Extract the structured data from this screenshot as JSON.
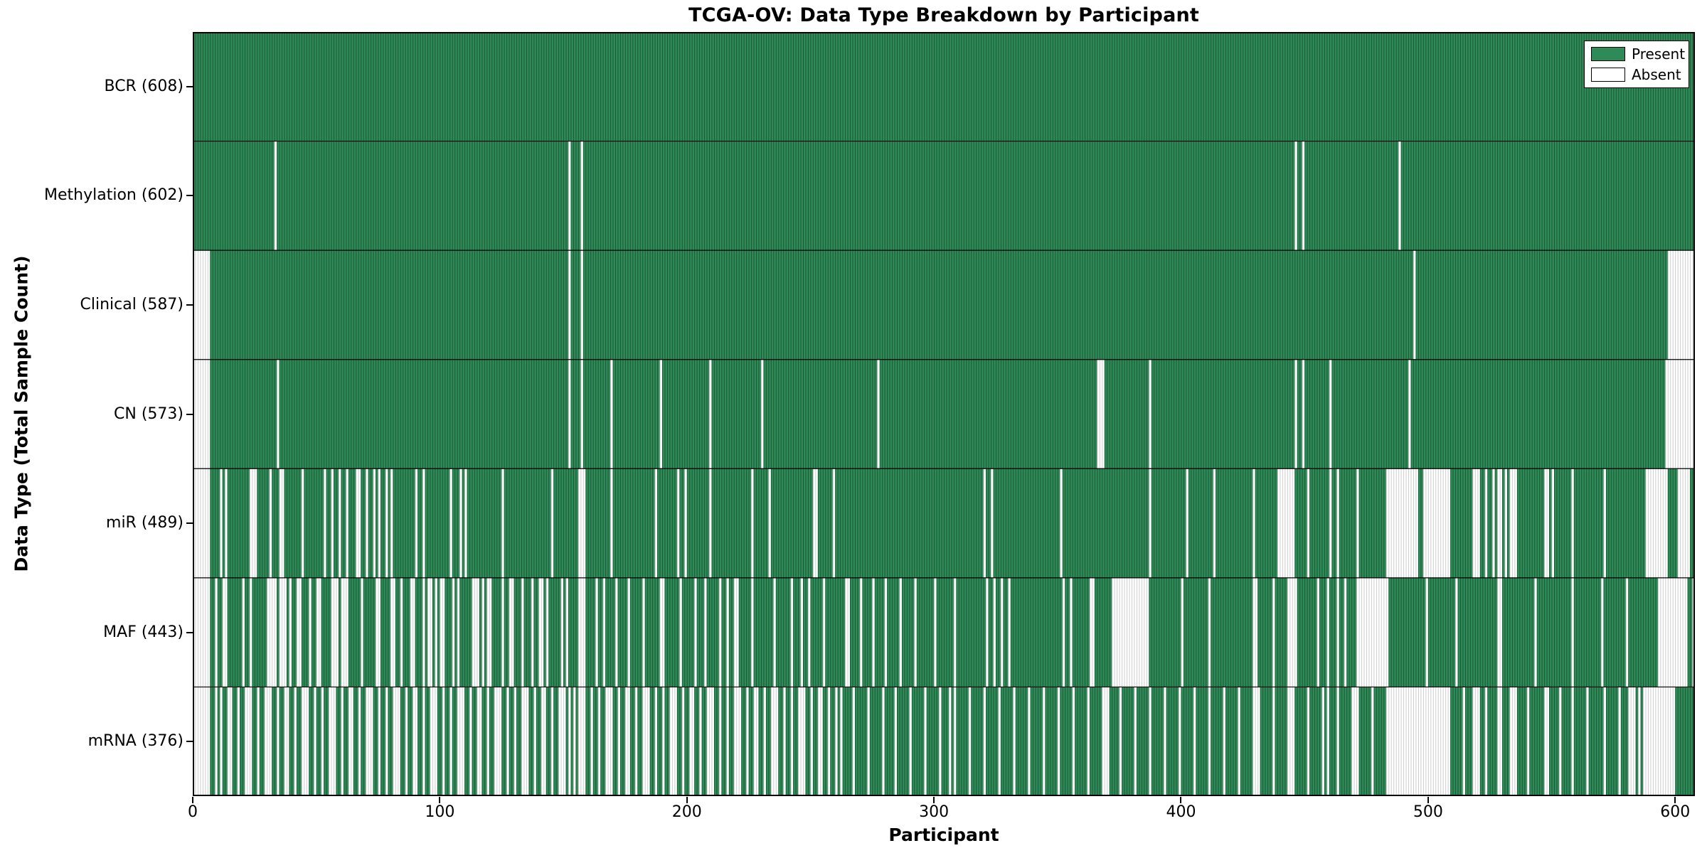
{
  "chart_data": {
    "type": "heatmap",
    "title": "TCGA-OV: Data Type Breakdown by Participant",
    "xlabel": "Participant",
    "ylabel": "Data Type (Total Sample Count)",
    "x_ticks": [
      0,
      100,
      200,
      300,
      400,
      500,
      600
    ],
    "xlim": [
      0,
      608
    ],
    "n_participants": 608,
    "grid": false,
    "legend_position": "upper right",
    "legend_entries": [
      "Present",
      "Absent"
    ],
    "colors": {
      "present": "#2e8b57",
      "present_edge": "#1a5232",
      "absent": "#ffffff",
      "absent_edge": "#c8c8c8",
      "axis": "#000000"
    },
    "rows": [
      {
        "label": "BCR (608)",
        "data_type": "BCR",
        "present_count": 608,
        "absent_count": 0,
        "absent": []
      },
      {
        "label": "Methylation (602)",
        "data_type": "Methylation",
        "present_count": 602,
        "absent_count": 6,
        "absent": [
          33,
          152,
          157,
          446,
          449,
          488
        ]
      },
      {
        "label": "Clinical (587)",
        "data_type": "Clinical",
        "present_count": 587,
        "absent_count": 21,
        "absent": [
          [
            0,
            6
          ],
          152,
          157,
          494,
          [
            597,
            607
          ]
        ]
      },
      {
        "label": "CN (573)",
        "data_type": "CN",
        "present_count": 573,
        "absent_count": 35,
        "absent": [
          [
            0,
            6
          ],
          34,
          152,
          157,
          169,
          189,
          209,
          230,
          277,
          [
            366,
            368
          ],
          387,
          446,
          449,
          460,
          492,
          [
            596,
            607
          ]
        ]
      },
      {
        "label": "miR (489)",
        "data_type": "miR",
        "present_count": 489,
        "absent_count": 119,
        "absent": [
          [
            0,
            6
          ],
          11,
          13,
          [
            23,
            25
          ],
          31,
          [
            35,
            36
          ],
          44,
          53,
          56,
          59,
          62,
          [
            66,
            67
          ],
          70,
          73,
          75,
          78,
          80,
          90,
          93,
          104,
          108,
          110,
          125,
          145,
          [
            156,
            158
          ],
          169,
          187,
          196,
          199,
          209,
          226,
          233,
          [
            251,
            252
          ],
          259,
          320,
          323,
          351,
          387,
          402,
          413,
          429,
          [
            439,
            445
          ],
          451,
          460,
          463,
          471,
          [
            483,
            495
          ],
          [
            498,
            508
          ],
          [
            518,
            520
          ],
          523,
          526,
          [
            528,
            529
          ],
          531,
          [
            533,
            535
          ],
          [
            547,
            548
          ],
          550,
          558,
          571,
          [
            588,
            596
          ],
          [
            601,
            605
          ]
        ]
      },
      {
        "label": "MAF (443)",
        "data_type": "MAF",
        "present_count": 443,
        "absent_count": 165,
        "absent": [
          [
            0,
            6
          ],
          9,
          [
            12,
            13
          ],
          20,
          23,
          [
            30,
            33
          ],
          [
            35,
            37
          ],
          39,
          [
            42,
            43
          ],
          47,
          [
            50,
            51
          ],
          [
            56,
            58
          ],
          [
            60,
            62
          ],
          68,
          [
            74,
            75
          ],
          [
            80,
            81
          ],
          84,
          [
            88,
            89
          ],
          93,
          [
            95,
            96
          ],
          98,
          [
            100,
            101
          ],
          105,
          107,
          [
            113,
            115
          ],
          117,
          [
            119,
            120
          ],
          125,
          [
            128,
            129
          ],
          133,
          137,
          [
            140,
            141
          ],
          143,
          149,
          151,
          [
            156,
            158
          ],
          163,
          166,
          171,
          176,
          182,
          [
            189,
            190
          ],
          197,
          203,
          207,
          213,
          216,
          [
            219,
            220
          ],
          226,
          235,
          242,
          246,
          249,
          255,
          [
            264,
            265
          ],
          270,
          275,
          280,
          286,
          292,
          300,
          308,
          321,
          324,
          327,
          330,
          352,
          355,
          [
            363,
            364
          ],
          [
            372,
            386
          ],
          400,
          411,
          [
            429,
            430
          ],
          437,
          [
            443,
            446
          ],
          455,
          459,
          463,
          466,
          [
            471,
            483
          ],
          499,
          511,
          [
            528,
            529
          ],
          543,
          558,
          570,
          580,
          [
            593,
            604
          ],
          607
        ]
      },
      {
        "label": "mRNA (376)",
        "data_type": "mRNA",
        "present_count": 376,
        "absent_count": 232,
        "absent": [
          [
            0,
            6
          ],
          9,
          11,
          [
            14,
            15
          ],
          18,
          [
            21,
            23
          ],
          26,
          [
            29,
            31
          ],
          34,
          [
            37,
            38
          ],
          41,
          [
            44,
            46
          ],
          49,
          52,
          [
            55,
            57
          ],
          60,
          [
            63,
            64
          ],
          67,
          [
            70,
            72
          ],
          75,
          78,
          [
            81,
            83
          ],
          86,
          [
            89,
            90
          ],
          93,
          [
            96,
            98
          ],
          101,
          104,
          [
            107,
            109
          ],
          112,
          [
            115,
            116
          ],
          119,
          [
            122,
            124
          ],
          127,
          130,
          [
            133,
            135
          ],
          138,
          [
            141,
            142
          ],
          145,
          [
            148,
            150
          ],
          152,
          154,
          [
            156,
            158
          ],
          161,
          164,
          [
            167,
            169
          ],
          172,
          [
            175,
            176
          ],
          179,
          [
            182,
            184
          ],
          187,
          190,
          [
            193,
            195
          ],
          198,
          [
            201,
            202
          ],
          205,
          [
            208,
            210
          ],
          213,
          216,
          [
            219,
            221
          ],
          224,
          [
            227,
            228
          ],
          231,
          [
            234,
            236
          ],
          239,
          242,
          [
            245,
            247
          ],
          250,
          [
            253,
            254
          ],
          257,
          260,
          262,
          267,
          273,
          279,
          284,
          290,
          296,
          302,
          306,
          308,
          314,
          320,
          326,
          332,
          338,
          344,
          350,
          356,
          362,
          [
            368,
            370
          ],
          375,
          381,
          387,
          393,
          399,
          405,
          411,
          417,
          423,
          [
            429,
            431
          ],
          437,
          [
            443,
            445
          ],
          451,
          457,
          459,
          463,
          [
            469,
            471
          ],
          477,
          [
            483,
            508
          ],
          514,
          [
            518,
            520
          ],
          523,
          [
            528,
            529
          ],
          [
            533,
            535
          ],
          540,
          [
            547,
            548
          ],
          553,
          558,
          564,
          571,
          577,
          [
            581,
            583
          ],
          585,
          [
            587,
            599
          ]
        ]
      }
    ]
  }
}
